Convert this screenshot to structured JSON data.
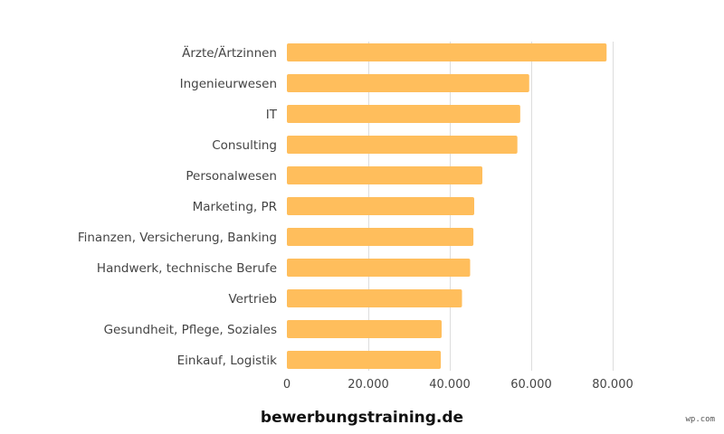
{
  "chart_data": {
    "type": "bar",
    "orientation": "horizontal",
    "categories": [
      "Ärzte/Ärtzinnen",
      "Ingenieurwesen",
      "IT",
      "Consulting",
      "Personalwesen",
      "Marketing, PR",
      "Finanzen, Versicherung, Banking",
      "Handwerk, technische Berufe",
      "Vertrieb",
      "Gesundheit, Pflege, Soziales",
      "Einkauf, Logistik"
    ],
    "values": [
      78500,
      59500,
      57300,
      56600,
      48000,
      46000,
      45800,
      45000,
      43000,
      38000,
      37800
    ],
    "xlim": [
      0,
      80000
    ],
    "xticks": [
      0,
      20000,
      40000,
      60000,
      80000
    ],
    "xtick_labels": [
      "0",
      "20.000",
      "40.000",
      "60.000",
      "80.000"
    ],
    "grid": true,
    "legend": "none",
    "title": "",
    "xlabel": "",
    "ylabel": "",
    "bar_color": "#FFBE5C",
    "grid_color": "#dddddd"
  },
  "source_text": "bewerbungstraining.de",
  "watermark_text": "wp.com"
}
